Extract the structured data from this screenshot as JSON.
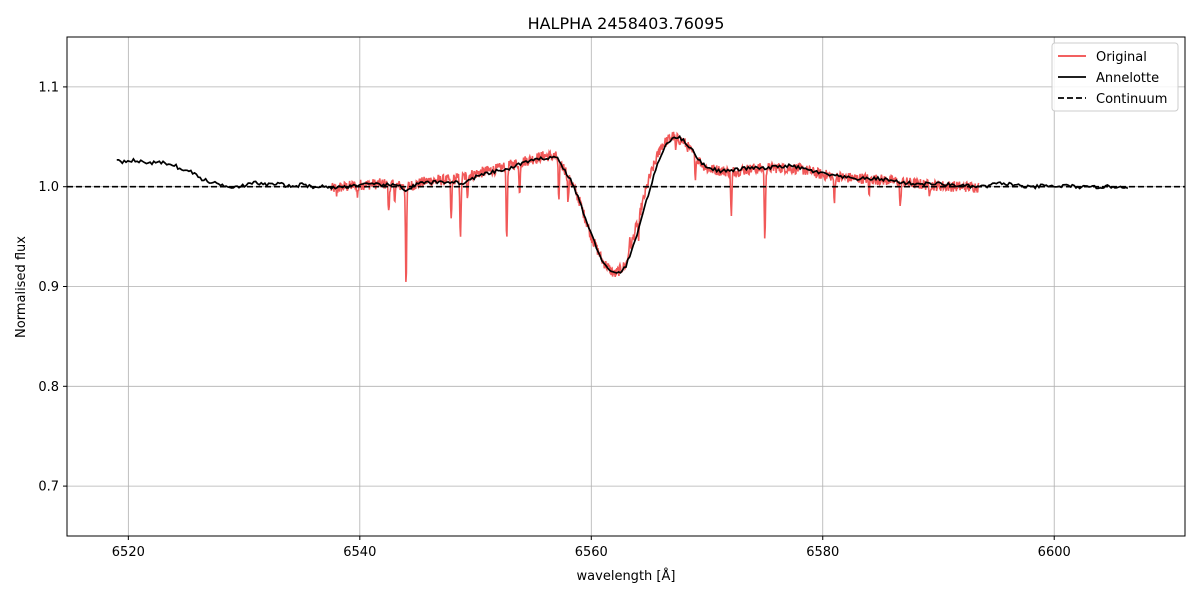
{
  "chart_data": {
    "type": "line",
    "title": "HALPHA 2458403.76095",
    "xlabel": "wavelength [Å]",
    "ylabel": "Normalised flux",
    "xlim": [
      6514.7,
      6611.3
    ],
    "ylim": [
      0.65,
      1.15
    ],
    "xticks": [
      6520,
      6540,
      6560,
      6580,
      6600
    ],
    "yticks": [
      0.7,
      0.8,
      0.9,
      1.0,
      1.1
    ],
    "xtick_labels": [
      "6520",
      "6540",
      "6560",
      "6580",
      "6600"
    ],
    "ytick_labels": [
      "0.7",
      "0.8",
      "0.9",
      "1.0",
      "1.1"
    ],
    "grid": true,
    "legend_position": "top-right",
    "series": [
      {
        "name": "Original",
        "color": "#f04a4a",
        "style": "solid",
        "x_start": 6537.5,
        "x_end": 6593.5,
        "baseline": [
          [
            6537.5,
            0.998
          ],
          [
            6540,
            1.002
          ],
          [
            6542,
            1.003
          ],
          [
            6544,
            1.0
          ],
          [
            6546,
            1.006
          ],
          [
            6548,
            1.007
          ],
          [
            6550,
            1.013
          ],
          [
            6552,
            1.018
          ],
          [
            6554,
            1.025
          ],
          [
            6556,
            1.031
          ],
          [
            6557,
            1.03
          ],
          [
            6558,
            1.012
          ],
          [
            6559,
            0.985
          ],
          [
            6560,
            0.95
          ],
          [
            6561,
            0.925
          ],
          [
            6562,
            0.912
          ],
          [
            6563,
            0.922
          ],
          [
            6564,
            0.965
          ],
          [
            6565,
            1.008
          ],
          [
            6566,
            1.04
          ],
          [
            6567,
            1.051
          ],
          [
            6568,
            1.045
          ],
          [
            6569,
            1.03
          ],
          [
            6570,
            1.018
          ],
          [
            6572,
            1.015
          ],
          [
            6574,
            1.018
          ],
          [
            6576,
            1.019
          ],
          [
            6578,
            1.018
          ],
          [
            6580,
            1.012
          ],
          [
            6582,
            1.009
          ],
          [
            6584,
            1.008
          ],
          [
            6586,
            1.006
          ],
          [
            6588,
            1.003
          ],
          [
            6590,
            1.001
          ],
          [
            6592,
            1.0
          ],
          [
            6593.5,
            1.0
          ]
        ],
        "absorption_lines": [
          [
            6538.0,
            0.992
          ],
          [
            6539.8,
            0.99
          ],
          [
            6542.5,
            0.973
          ],
          [
            6543.0,
            0.988
          ],
          [
            6544.0,
            0.901
          ],
          [
            6547.9,
            0.965
          ],
          [
            6548.7,
            0.945
          ],
          [
            6549.3,
            0.992
          ],
          [
            6552.7,
            0.943
          ],
          [
            6553.8,
            0.992
          ],
          [
            6557.2,
            0.982
          ],
          [
            6558.0,
            0.983
          ],
          [
            6563.3,
            0.945
          ],
          [
            6564.1,
            0.946
          ],
          [
            6567.3,
            1.036
          ],
          [
            6569.0,
            1.012
          ],
          [
            6572.1,
            0.968
          ],
          [
            6575.0,
            0.943
          ],
          [
            6581.0,
            0.983
          ],
          [
            6584.0,
            0.993
          ],
          [
            6586.7,
            0.977
          ],
          [
            6589.2,
            0.995
          ]
        ]
      },
      {
        "name": "Annelotte",
        "color": "#000000",
        "style": "solid",
        "x_start": 6519.0,
        "x_end": 6606.5,
        "points": [
          [
            6519.0,
            1.028
          ],
          [
            6519.5,
            1.025
          ],
          [
            6520.0,
            1.027
          ],
          [
            6521.0,
            1.025
          ],
          [
            6522.0,
            1.024
          ],
          [
            6523.0,
            1.024
          ],
          [
            6524.0,
            1.022
          ],
          [
            6524.5,
            1.017
          ],
          [
            6525.0,
            1.016
          ],
          [
            6525.5,
            1.015
          ],
          [
            6526.0,
            1.01
          ],
          [
            6526.5,
            1.007
          ],
          [
            6527.0,
            1.005
          ],
          [
            6528.0,
            1.002
          ],
          [
            6529.0,
            1.0
          ],
          [
            6530.0,
            1.001
          ],
          [
            6531.0,
            1.004
          ],
          [
            6532.0,
            1.002
          ],
          [
            6533.0,
            1.003
          ],
          [
            6534.0,
            1.0
          ],
          [
            6535.0,
            1.002
          ],
          [
            6536.0,
            1.0
          ],
          [
            6537.0,
            1.0
          ],
          [
            6538.0,
            0.999
          ],
          [
            6540.0,
            1.002
          ],
          [
            6542.0,
            1.002
          ],
          [
            6543.5,
            1.001
          ],
          [
            6544.0,
            0.996
          ],
          [
            6545.0,
            1.003
          ],
          [
            6546.0,
            1.004
          ],
          [
            6548.0,
            1.005
          ],
          [
            6549.0,
            1.003
          ],
          [
            6550.0,
            1.01
          ],
          [
            6551.0,
            1.013
          ],
          [
            6552.0,
            1.016
          ],
          [
            6553.0,
            1.018
          ],
          [
            6554.0,
            1.024
          ],
          [
            6555.0,
            1.026
          ],
          [
            6556.0,
            1.029
          ],
          [
            6557.0,
            1.03
          ],
          [
            6557.5,
            1.02
          ],
          [
            6558.0,
            1.011
          ],
          [
            6558.5,
            1.0
          ],
          [
            6559.0,
            0.985
          ],
          [
            6559.5,
            0.968
          ],
          [
            6560.0,
            0.952
          ],
          [
            6560.5,
            0.938
          ],
          [
            6561.0,
            0.925
          ],
          [
            6561.5,
            0.916
          ],
          [
            6562.0,
            0.913
          ],
          [
            6562.5,
            0.914
          ],
          [
            6563.0,
            0.921
          ],
          [
            6563.5,
            0.935
          ],
          [
            6564.0,
            0.955
          ],
          [
            6564.5,
            0.975
          ],
          [
            6565.0,
            0.995
          ],
          [
            6565.5,
            1.014
          ],
          [
            6566.0,
            1.031
          ],
          [
            6566.5,
            1.043
          ],
          [
            6567.0,
            1.049
          ],
          [
            6567.5,
            1.05
          ],
          [
            6568.0,
            1.046
          ],
          [
            6568.5,
            1.04
          ],
          [
            6569.0,
            1.032
          ],
          [
            6569.5,
            1.024
          ],
          [
            6570.0,
            1.02
          ],
          [
            6571.0,
            1.016
          ],
          [
            6572.0,
            1.016
          ],
          [
            6573.0,
            1.018
          ],
          [
            6574.0,
            1.019
          ],
          [
            6575.0,
            1.018
          ],
          [
            6576.0,
            1.02
          ],
          [
            6577.0,
            1.021
          ],
          [
            6578.0,
            1.019
          ],
          [
            6579.0,
            1.016
          ],
          [
            6580.0,
            1.013
          ],
          [
            6581.0,
            1.011
          ],
          [
            6582.0,
            1.009
          ],
          [
            6583.0,
            1.008
          ],
          [
            6584.0,
            1.008
          ],
          [
            6585.0,
            1.008
          ],
          [
            6586.0,
            1.006
          ],
          [
            6587.0,
            1.004
          ],
          [
            6588.0,
            1.003
          ],
          [
            6589.0,
            1.003
          ],
          [
            6590.0,
            1.003
          ],
          [
            6591.0,
            1.002
          ],
          [
            6592.0,
            1.001
          ],
          [
            6593.0,
            1.0
          ],
          [
            6594.0,
            1.0
          ],
          [
            6595.0,
            1.003
          ],
          [
            6596.0,
            1.003
          ],
          [
            6597.0,
            1.001
          ],
          [
            6598.0,
            0.999
          ],
          [
            6599.0,
            1.001
          ],
          [
            6600.0,
            1.0
          ],
          [
            6601.0,
            1.001
          ],
          [
            6602.0,
            1.0
          ],
          [
            6603.0,
            0.999
          ],
          [
            6604.0,
            1.0
          ],
          [
            6605.0,
            1.0
          ],
          [
            6606.5,
            1.0
          ]
        ]
      },
      {
        "name": "Continuum",
        "color": "#000000",
        "style": "dashed",
        "y": 1.0
      }
    ]
  }
}
